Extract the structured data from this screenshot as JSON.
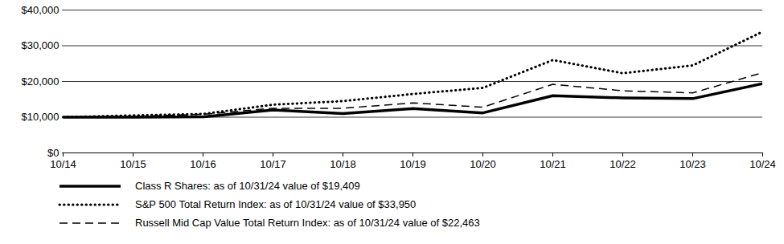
{
  "chart_data": {
    "type": "line",
    "categories": [
      "10/14",
      "10/15",
      "10/16",
      "10/17",
      "10/18",
      "10/19",
      "10/20",
      "10/21",
      "10/22",
      "10/23",
      "10/24"
    ],
    "series": [
      {
        "name": "Class R Shares: as of 10/31/24 value of $19,409",
        "color": "#000000",
        "line_style": "solid",
        "values": [
          10000,
          10000,
          10100,
          12000,
          11000,
          12400,
          11200,
          16000,
          15400,
          15200,
          19409
        ]
      },
      {
        "name": "S&P 500 Total Return Index: as of 10/31/24 value of $33,950",
        "color": "#000000",
        "line_style": "dotted",
        "values": [
          10000,
          10500,
          10900,
          13500,
          14500,
          16500,
          18200,
          26000,
          22300,
          24500,
          33950
        ]
      },
      {
        "name": "Russell Mid Cap Value Total Return Index: as of 10/31/24 value of $22,463",
        "color": "#000000",
        "line_style": "dashed",
        "values": [
          10000,
          10200,
          10800,
          12500,
          12500,
          14000,
          12800,
          19200,
          17400,
          16800,
          22463
        ]
      }
    ],
    "ylim": [
      0,
      40000
    ],
    "yticks": [
      {
        "value": 0,
        "label": "$0"
      },
      {
        "value": 10000,
        "label": "$10,000"
      },
      {
        "value": 20000,
        "label": "$20,000"
      },
      {
        "value": 30000,
        "label": "$30,000"
      },
      {
        "value": 40000,
        "label": "$40,000"
      }
    ],
    "grid": true,
    "legend": "bottom"
  }
}
